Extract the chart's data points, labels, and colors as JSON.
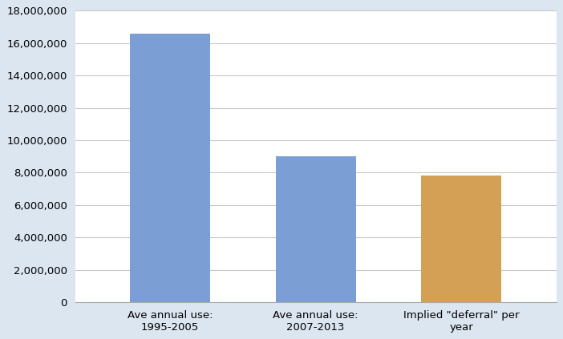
{
  "categories": [
    "Ave annual use:\n1995-2005",
    "Ave annual use:\n2007-2013",
    "Implied \"deferral\" per\nyear"
  ],
  "values": [
    16600000,
    9000000,
    7800000
  ],
  "bar_colors": [
    "#7b9fd4",
    "#7b9fd4",
    "#d4a055"
  ],
  "ylim": [
    0,
    18000000
  ],
  "ytick_step": 2000000,
  "figure_bg_color": "#dce6f1",
  "plot_bg_color": "#ffffff",
  "grid_color": "#c8c8c8",
  "tick_label_fontsize": 9.5,
  "bar_width": 0.55,
  "spine_color": "#aaaaaa"
}
